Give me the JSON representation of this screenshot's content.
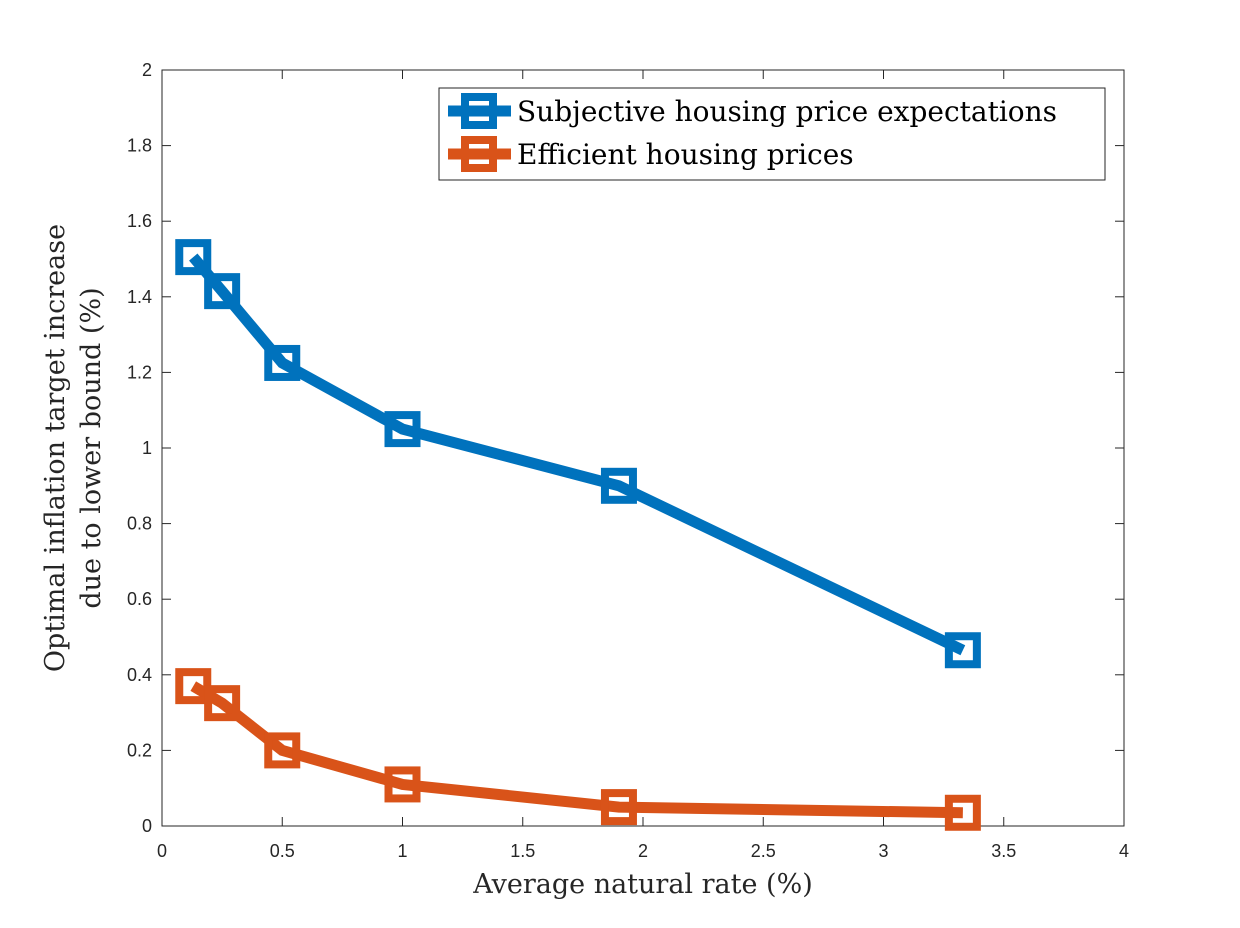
{
  "chart_data": {
    "type": "line",
    "title": "",
    "xlabel": "Average natural rate (%)",
    "ylabel_lines": [
      "Optimal inflation target increase",
      "due to lower bound (%)"
    ],
    "xlim": [
      0,
      4
    ],
    "ylim": [
      0,
      2
    ],
    "x_ticks": [
      0,
      0.5,
      1,
      1.5,
      2,
      2.5,
      3,
      3.5,
      4
    ],
    "x_tick_labels": [
      "0",
      "0.5",
      "1",
      "1.5",
      "2",
      "2.5",
      "3",
      "3.5",
      "4"
    ],
    "y_ticks": [
      0,
      0.2,
      0.4,
      0.6,
      0.8,
      1,
      1.2,
      1.4,
      1.6,
      1.8,
      2
    ],
    "y_tick_labels": [
      "0",
      "0.2",
      "0.4",
      "0.6",
      "0.8",
      "1",
      "1.2",
      "1.4",
      "1.6",
      "1.8",
      "2"
    ],
    "grid": false,
    "legend_position": "top-right",
    "series": [
      {
        "name": "Subjective housing price expectations",
        "color": "#0072BD",
        "marker": "square",
        "x": [
          0.13,
          0.25,
          0.5,
          1.0,
          1.9,
          3.33
        ],
        "y": [
          1.505,
          1.415,
          1.225,
          1.05,
          0.9,
          0.465
        ]
      },
      {
        "name": "Efficient housing prices",
        "color": "#D95319",
        "marker": "square",
        "x": [
          0.13,
          0.25,
          0.5,
          1.0,
          1.9,
          3.33
        ],
        "y": [
          0.37,
          0.325,
          0.2,
          0.11,
          0.05,
          0.035
        ]
      }
    ]
  }
}
